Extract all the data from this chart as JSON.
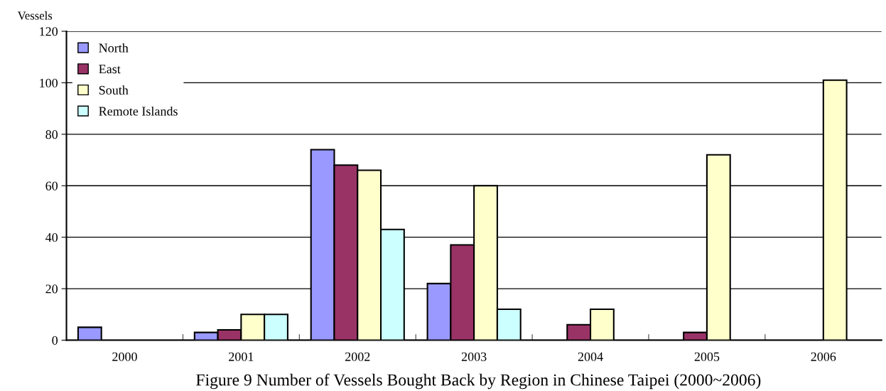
{
  "chart_data": {
    "type": "bar",
    "title": "Figure 9 Number of Vessels Bought Back by Region in Chinese Taipei (2000~2006)",
    "ylabel": "Vessels",
    "categories": [
      "2000",
      "2001",
      "2002",
      "2003",
      "2004",
      "2005",
      "2006"
    ],
    "series": [
      {
        "name": "North",
        "color": "#9999ff",
        "values": [
          5,
          3,
          74,
          22,
          null,
          null,
          null
        ]
      },
      {
        "name": "East",
        "color": "#993366",
        "values": [
          null,
          4,
          68,
          37,
          6,
          3,
          null
        ]
      },
      {
        "name": "South",
        "color": "#ffffcc",
        "values": [
          null,
          10,
          66,
          60,
          12,
          72,
          101
        ]
      },
      {
        "name": "Remote Islands",
        "color": "#ccffff",
        "values": [
          null,
          10,
          43,
          12,
          null,
          null,
          null
        ]
      }
    ],
    "ylim": [
      0,
      120
    ],
    "yticks": [
      0,
      20,
      40,
      60,
      80,
      100,
      120
    ],
    "grid": "y",
    "legend": "top left"
  }
}
